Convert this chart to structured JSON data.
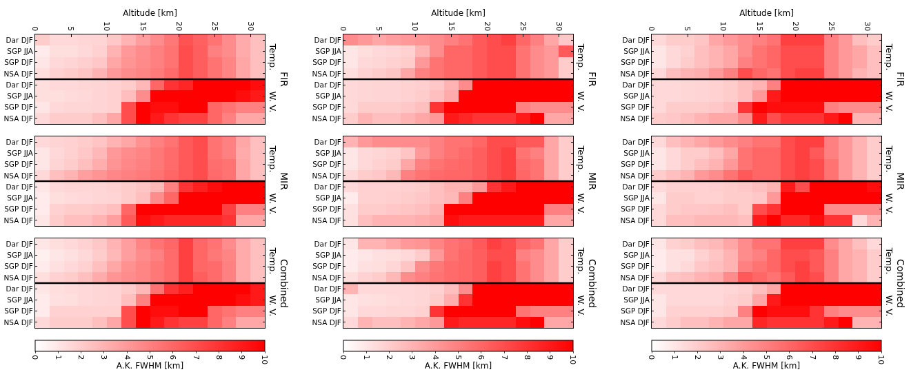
{
  "chart_data": [
    {
      "type": "heatmap",
      "xlabel": "Altitude [km]",
      "x": [
        1,
        3,
        5,
        7,
        9,
        11,
        13,
        15,
        17,
        19,
        21,
        23,
        25,
        27,
        29,
        31
      ],
      "xlim": [
        0,
        32
      ],
      "xticks": [
        0,
        5,
        10,
        15,
        20,
        25,
        30
      ],
      "y_categories": [
        "Dar DJF",
        "SGP JJA",
        "SGP DJF",
        "NSA DJF",
        "Dar DJF",
        "SGP JJA",
        "SGP DJF",
        "NSA DJF",
        "Dar DJF",
        "SGP JJA",
        "SGP DJF",
        "NSA DJF",
        "Dar DJF",
        "SGP JJA",
        "SGP DJF",
        "NSA DJF",
        "Dar DJF",
        "SGP JJA",
        "SGP DJF",
        "NSA DJF",
        "Dar DJF",
        "SGP JJA",
        "SGP DJF",
        "NSA DJF"
      ],
      "clim": [
        0,
        10
      ],
      "cticks": [
        0,
        1,
        2,
        3,
        4,
        5,
        6,
        7,
        8,
        9,
        10
      ],
      "clabel": "A.K. FWHM [km]",
      "annotations": [
        "Temp.",
        "W. V.",
        "FIR",
        "Temp.",
        "W. V.",
        "MIR",
        "Temp.",
        "W. V.",
        "Combined"
      ],
      "cells": [
        [
          2,
          1.5,
          1.5,
          1.6,
          1.7,
          2.2,
          3,
          3.8,
          4.5,
          5.3,
          6.8,
          6.2,
          5.5,
          4.5,
          3.3,
          2.5
        ],
        [
          0.8,
          1.3,
          1.3,
          1.5,
          1.8,
          3,
          4,
          4.5,
          5,
          5.5,
          7,
          6.3,
          5,
          4.5,
          3.3,
          2.5
        ],
        [
          1,
          1.5,
          1.7,
          1.9,
          2.2,
          3.5,
          4.2,
          4.6,
          5,
          5.5,
          7,
          6.3,
          5.5,
          4.8,
          3.5,
          2.5
        ],
        [
          1.3,
          1.8,
          2,
          2.3,
          3,
          4,
          4.5,
          4.8,
          5.2,
          5.8,
          7,
          6.3,
          5.5,
          4.8,
          3.5,
          2.5
        ],
        [
          1.3,
          1.5,
          1.5,
          1.6,
          1.7,
          1.8,
          2,
          2.8,
          6,
          8,
          8.5,
          10,
          10,
          10,
          10,
          9.5
        ],
        [
          1.3,
          1.3,
          1.4,
          1.5,
          1.7,
          1.8,
          2.6,
          4.5,
          10,
          10,
          10,
          10,
          10,
          10,
          9.5,
          9
        ],
        [
          1,
          1.5,
          1.6,
          1.6,
          1.7,
          1.8,
          7,
          10,
          9.5,
          9.5,
          10,
          10,
          6,
          5.5,
          5,
          5
        ],
        [
          1.5,
          2,
          2,
          2,
          2.5,
          3.5,
          7,
          10,
          9,
          8,
          7.5,
          7.5,
          6,
          5,
          3.5,
          3.5
        ],
        [
          1.5,
          1.7,
          1.8,
          2,
          2.3,
          3,
          3.5,
          4.3,
          5,
          5.5,
          6.5,
          7,
          5.5,
          5,
          3.5,
          2.5
        ],
        [
          1,
          1.5,
          1.8,
          2.2,
          2.8,
          4,
          4.5,
          4.8,
          5.3,
          5.8,
          6.5,
          7,
          5.5,
          5,
          3.3,
          2.5
        ],
        [
          1,
          1.7,
          2,
          2.5,
          3.2,
          4.2,
          4.7,
          5,
          5.3,
          5.8,
          6.5,
          7,
          5.7,
          5.5,
          3.5,
          2.5
        ],
        [
          1.5,
          2.5,
          3,
          3.8,
          4.2,
          4.7,
          5,
          5.2,
          5.5,
          6,
          6.5,
          7,
          5.8,
          5.5,
          3.5,
          2.5
        ],
        [
          1,
          1.5,
          1.6,
          1.6,
          1.7,
          1.8,
          2,
          2.3,
          2.8,
          5,
          8,
          8.8,
          9.5,
          10,
          10,
          10
        ],
        [
          0.8,
          1.3,
          1.4,
          1.5,
          1.6,
          1.7,
          2,
          2.5,
          4.5,
          6,
          10,
          10,
          10,
          10,
          10,
          10
        ],
        [
          0.8,
          1.8,
          2,
          2,
          2.2,
          2.5,
          6,
          10,
          10,
          10,
          10,
          10,
          10,
          7.5,
          5,
          5
        ],
        [
          1,
          2,
          2.5,
          2.5,
          3,
          3.8,
          6.5,
          9.5,
          9,
          8.5,
          8.5,
          8.5,
          8.5,
          8,
          3.5,
          3.5
        ],
        [
          1,
          1.3,
          1.5,
          1.8,
          2.2,
          3,
          3.8,
          4.8,
          5.5,
          6,
          7.5,
          6,
          5.5,
          4.5,
          3.3,
          2.5
        ],
        [
          0.6,
          1,
          1.2,
          1.5,
          2,
          2.8,
          3.8,
          4.5,
          5,
          5.8,
          7.5,
          6,
          5.3,
          4.8,
          3.3,
          2.5
        ],
        [
          0.8,
          1.2,
          1.5,
          1.8,
          2.5,
          3.5,
          4.3,
          4.8,
          5.3,
          5.8,
          7.5,
          6,
          5.8,
          5,
          3.3,
          2.5
        ],
        [
          1.3,
          1.8,
          2,
          2.5,
          3.3,
          4.2,
          4.5,
          4.8,
          5.3,
          5.8,
          7.5,
          6.3,
          5.8,
          5,
          3.3,
          2.5
        ],
        [
          1,
          1.3,
          1.4,
          1.5,
          1.6,
          1.7,
          2,
          2.8,
          5.5,
          8,
          8.8,
          10,
          10,
          10,
          10,
          9
        ],
        [
          0.8,
          1.2,
          1.3,
          1.5,
          1.6,
          1.7,
          2.5,
          5,
          10,
          10,
          10,
          10,
          10,
          10,
          9.5,
          9
        ],
        [
          0.8,
          1.8,
          1.8,
          1.8,
          1.8,
          1.8,
          7,
          10,
          9.5,
          9.5,
          10,
          10,
          6,
          5.5,
          5,
          5
        ],
        [
          1.5,
          2,
          2,
          2,
          2.5,
          3.5,
          7,
          10,
          9,
          8,
          7.5,
          7.5,
          6,
          5,
          3.5,
          3.5
        ]
      ]
    },
    {
      "type": "heatmap",
      "xlabel": "Altitude [km]",
      "x": [
        1,
        3,
        5,
        7,
        9,
        11,
        13,
        15,
        17,
        19,
        21,
        23,
        25,
        27,
        29,
        31
      ],
      "xlim": [
        0,
        32
      ],
      "xticks": [
        0,
        5,
        10,
        15,
        20,
        25,
        30
      ],
      "y_categories": [
        "Dar DJF",
        "SGP JJA",
        "SGP DJF",
        "NSA DJF",
        "Dar DJF",
        "SGP JJA",
        "SGP DJF",
        "NSA DJF",
        "Dar DJF",
        "SGP JJA",
        "SGP DJF",
        "NSA DJF",
        "Dar DJF",
        "SGP JJA",
        "SGP DJF",
        "NSA DJF",
        "Dar DJF",
        "SGP JJA",
        "SGP DJF",
        "NSA DJF",
        "Dar DJF",
        "SGP JJA",
        "SGP DJF",
        "NSA DJF"
      ],
      "clim": [
        0,
        10
      ],
      "cticks": [
        0,
        1,
        2,
        3,
        4,
        5,
        6,
        7,
        8,
        9,
        10
      ],
      "clabel": "A.K. FWHM [km]",
      "annotations": [
        "Temp.",
        "W. V.",
        "FIR",
        "Temp.",
        "W. V.",
        "MIR",
        "Temp.",
        "W. V.",
        "Combined"
      ],
      "cells": [
        [
          4.5,
          4,
          3.5,
          3.8,
          4,
          4.2,
          4.5,
          5,
          5.5,
          6.5,
          7,
          7.5,
          6,
          5,
          3.5,
          2.2
        ],
        [
          1,
          1.3,
          1.5,
          1.6,
          1.8,
          3,
          4.5,
          6,
          6,
          6.5,
          7,
          7,
          5.5,
          4.5,
          4,
          6.5
        ],
        [
          1,
          1.5,
          1.6,
          1.8,
          2,
          4,
          5.5,
          6,
          6,
          6.5,
          7,
          7,
          5.5,
          4.5,
          4,
          2
        ],
        [
          1.3,
          1.8,
          2,
          2.3,
          3.5,
          5,
          5.5,
          6,
          6,
          6.5,
          7,
          7,
          5.5,
          4.5,
          4,
          2
        ],
        [
          1.5,
          1.6,
          1.7,
          1.7,
          1.8,
          1.9,
          2.2,
          3,
          4.5,
          10,
          10,
          10,
          10,
          10,
          10,
          10
        ],
        [
          1.5,
          1.6,
          1.7,
          1.7,
          1.8,
          2,
          2.5,
          3.3,
          10,
          10,
          10,
          10,
          10,
          10,
          10,
          10
        ],
        [
          1.5,
          2,
          2,
          2,
          2.2,
          2.5,
          8,
          10,
          10,
          10,
          10,
          10,
          5,
          4.5,
          4.5,
          4.5
        ],
        [
          2,
          3,
          2.5,
          2.5,
          3,
          3.5,
          4,
          9,
          8.5,
          8,
          8,
          8,
          9,
          10,
          3.5,
          3.5
        ],
        [
          3,
          4,
          4.5,
          4.5,
          4.5,
          4.5,
          5,
          5.5,
          5.5,
          6,
          7,
          7,
          6.5,
          6.5,
          3.5,
          2
        ],
        [
          1,
          1.5,
          1.6,
          1.8,
          2.3,
          4,
          5,
          5.5,
          5.8,
          6.3,
          7,
          7.5,
          5.5,
          5,
          3.5,
          2
        ],
        [
          1,
          1.5,
          1.8,
          2,
          3.5,
          5,
          5.5,
          5.8,
          6,
          6.3,
          7,
          7.5,
          5.8,
          5.5,
          3.5,
          2
        ],
        [
          1.5,
          2,
          2.2,
          2.8,
          5,
          5.5,
          5.8,
          6,
          6,
          6.3,
          7,
          7.5,
          6,
          5.5,
          3.5,
          2
        ],
        [
          1.5,
          1.8,
          1.8,
          1.8,
          1.9,
          2,
          2.5,
          3,
          3,
          4,
          8,
          9,
          10,
          10,
          10,
          10
        ],
        [
          0.8,
          1.8,
          1.8,
          1.9,
          2,
          2.2,
          2.5,
          2.8,
          5,
          10,
          10,
          10,
          10,
          10,
          10,
          10
        ],
        [
          1.2,
          2,
          2,
          2.2,
          2.3,
          2.5,
          3,
          10,
          10,
          10,
          10,
          10,
          10,
          10,
          5,
          5
        ],
        [
          1.2,
          2.5,
          3,
          3,
          3,
          3.2,
          3.5,
          9.5,
          9,
          9,
          9,
          9,
          9,
          9,
          3.5,
          3.5
        ],
        [
          1,
          3,
          3,
          3.5,
          4,
          4.2,
          4.8,
          5.5,
          5.8,
          6.5,
          7.5,
          7,
          6,
          5.5,
          3.5,
          2
        ],
        [
          0.8,
          1,
          1.2,
          1.3,
          1.5,
          2,
          4,
          5.5,
          6,
          6.3,
          7,
          7,
          5,
          4.5,
          3.5,
          2
        ],
        [
          0.8,
          1.2,
          1.3,
          1.6,
          2.3,
          4.5,
          5.3,
          5.8,
          6,
          6.3,
          7.5,
          7,
          5.5,
          4.5,
          3.5,
          2
        ],
        [
          1.3,
          1.8,
          2,
          2.8,
          4.5,
          5,
          5.5,
          5.8,
          6,
          6.3,
          7.5,
          7,
          5.5,
          4.5,
          3.5,
          2
        ],
        [
          3,
          1.5,
          1.5,
          1.5,
          1.5,
          1.6,
          1.8,
          2.5,
          4.5,
          10,
          10,
          10,
          10,
          10,
          10,
          10
        ],
        [
          1,
          1.2,
          1.3,
          1.4,
          1.5,
          1.6,
          2,
          3.2,
          8,
          10,
          10,
          10,
          10,
          10,
          10,
          10
        ],
        [
          1,
          1.5,
          1.5,
          1.6,
          1.6,
          1.8,
          8,
          10,
          10,
          10,
          10,
          10,
          5.5,
          5,
          5,
          5
        ],
        [
          1.5,
          3,
          2.5,
          2.5,
          3,
          3.5,
          4,
          9,
          8.5,
          8.5,
          8.5,
          8.5,
          9.5,
          10,
          3.5,
          3.5
        ]
      ]
    },
    {
      "type": "heatmap",
      "xlabel": "Altitude [km]",
      "x": [
        1,
        3,
        5,
        7,
        9,
        11,
        13,
        15,
        17,
        19,
        21,
        23,
        25,
        27,
        29,
        31
      ],
      "xlim": [
        0,
        32
      ],
      "xticks": [
        0,
        5,
        10,
        15,
        20,
        25,
        30
      ],
      "y_categories": [
        "Dar DJF",
        "SGP JJA",
        "SGP DJF",
        "NSA DJF",
        "Dar DJF",
        "SGP JJA",
        "SGP DJF",
        "NSA DJF",
        "Dar DJF",
        "SGP JJA",
        "SGP DJF",
        "NSA DJF",
        "Dar DJF",
        "SGP JJA",
        "SGP DJF",
        "NSA DJF",
        "Dar DJF",
        "SGP JJA",
        "SGP DJF",
        "NSA DJF",
        "Dar DJF",
        "SGP JJA",
        "SGP DJF",
        "NSA DJF"
      ],
      "clim": [
        0,
        10
      ],
      "cticks": [
        0,
        1,
        2,
        3,
        4,
        5,
        6,
        7,
        8,
        9,
        10
      ],
      "clabel": "A.K. FWHM [km]",
      "annotations": [
        "Temp.",
        "W. V.",
        "FIR",
        "Temp.",
        "W. V.",
        "MIR",
        "Temp.",
        "W. V.",
        "Combined"
      ],
      "cells": [
        [
          1.5,
          2,
          2,
          2.3,
          3.5,
          4,
          4.5,
          5,
          5.5,
          7.5,
          7.5,
          7.5,
          5,
          4,
          2.5,
          2
        ],
        [
          1,
          1.5,
          1.8,
          2.5,
          3,
          3.5,
          4.5,
          5.5,
          6,
          7,
          7,
          7,
          5,
          4,
          3.5,
          2.5
        ],
        [
          1,
          1.5,
          2,
          2.5,
          3,
          3.5,
          5,
          5.5,
          6,
          7,
          7,
          7,
          5,
          4,
          3.5,
          2.5
        ],
        [
          1.5,
          2.5,
          3,
          3.2,
          4,
          5,
          7,
          6,
          5.5,
          7,
          7.5,
          7.5,
          5,
          4,
          3,
          2.5
        ],
        [
          1.5,
          1.5,
          1.6,
          1.7,
          1.8,
          2,
          2.5,
          3,
          5,
          10,
          10,
          10,
          10,
          10,
          10,
          10
        ],
        [
          1.5,
          1.5,
          1.6,
          1.7,
          1.8,
          2,
          2.5,
          4,
          9,
          10,
          10,
          10,
          10,
          10,
          10,
          10
        ],
        [
          1.5,
          2,
          2,
          2,
          2.2,
          2.5,
          8,
          10,
          9.5,
          9.5,
          9.5,
          9.5,
          5,
          4.5,
          4.5,
          4.5
        ],
        [
          2,
          2.2,
          2.5,
          3,
          3.5,
          3.5,
          4.5,
          9,
          7,
          8,
          8,
          8,
          9,
          10,
          3,
          3
        ],
        [
          1.5,
          2.5,
          3,
          3.5,
          4,
          4.5,
          5,
          5.5,
          5.5,
          7,
          7.5,
          7.5,
          5,
          4,
          3,
          2
        ],
        [
          1,
          1.5,
          2,
          2,
          2.5,
          3.5,
          5.5,
          6,
          6,
          7,
          7.5,
          6.5,
          5,
          4,
          3,
          2
        ],
        [
          1,
          1.5,
          2,
          2.5,
          3,
          4,
          5.5,
          6,
          6,
          7,
          7.5,
          7,
          5.5,
          4,
          3,
          2
        ],
        [
          2,
          2.5,
          3,
          4,
          4.5,
          5.5,
          6.5,
          6,
          6,
          7,
          7.5,
          7,
          5.5,
          4,
          3,
          2
        ],
        [
          1.5,
          1.8,
          1.8,
          1.8,
          1.9,
          2,
          2.2,
          2.5,
          3,
          9,
          7,
          10,
          10,
          10,
          10,
          9.5
        ],
        [
          1,
          2,
          2,
          1.8,
          1.8,
          2,
          2,
          2.2,
          4,
          10,
          10,
          10,
          10,
          10,
          10,
          10
        ],
        [
          1.5,
          2,
          2.2,
          2.2,
          2.3,
          2.5,
          2,
          7,
          8,
          10,
          10,
          10,
          4.5,
          4.5,
          4.5,
          4.5
        ],
        [
          1.5,
          2.5,
          2.5,
          2.8,
          2.8,
          2.8,
          2.5,
          9,
          10,
          8.5,
          8.5,
          9.5,
          8,
          8,
          1.5,
          3
        ],
        [
          1,
          1.8,
          2,
          2.5,
          2.8,
          3.5,
          4.5,
          5.5,
          5.5,
          7.5,
          7.5,
          7.5,
          4.5,
          3.5,
          2.5,
          1.5
        ],
        [
          0.8,
          1.2,
          1.2,
          1.8,
          2.3,
          3,
          4.5,
          5,
          6,
          7,
          7,
          6.5,
          5,
          3.5,
          3,
          2
        ],
        [
          0.8,
          1.2,
          1.5,
          2.2,
          2.5,
          3,
          5,
          5.5,
          6,
          7,
          7.5,
          6.5,
          5,
          3.5,
          3,
          2
        ],
        [
          1.5,
          2.3,
          2.5,
          3,
          3.3,
          4.5,
          6.5,
          6,
          5.5,
          6.5,
          7.5,
          7,
          5,
          3.5,
          3,
          2
        ],
        [
          1.5,
          1.5,
          1.5,
          1.5,
          1.5,
          1.6,
          1.8,
          2.5,
          3.5,
          10,
          10,
          10,
          10,
          10,
          10,
          10
        ],
        [
          1,
          1.5,
          1.5,
          1.5,
          1.5,
          1.8,
          2,
          3.5,
          9,
          10,
          10,
          10,
          10,
          10,
          10,
          10
        ],
        [
          1,
          1.8,
          1.8,
          1.8,
          1.8,
          2,
          5,
          10,
          9.5,
          9.5,
          9.5,
          8,
          5,
          4.5,
          4.5,
          4.5
        ],
        [
          1.5,
          2,
          2.5,
          2.5,
          3,
          3.5,
          3.5,
          8.5,
          8,
          8,
          8,
          8,
          9,
          10,
          3,
          3
        ]
      ]
    }
  ]
}
